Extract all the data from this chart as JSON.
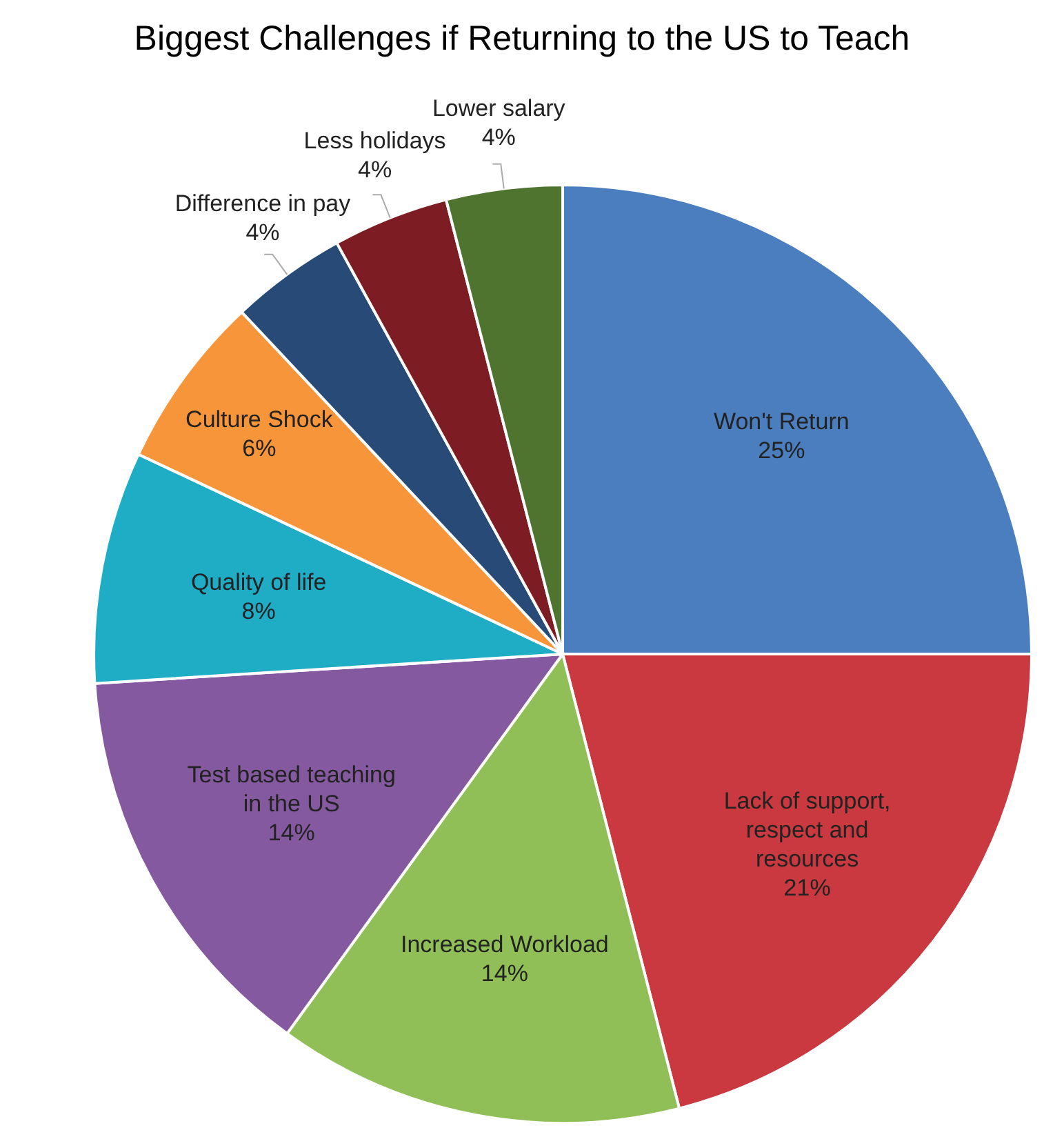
{
  "chart_data": {
    "type": "pie",
    "title": "Biggest Challenges if Returning to the US to Teach",
    "categories": [
      "Won't Return",
      "Lack of support, respect and resources",
      "Increased Workload",
      "Test based teaching in the US",
      "Quality of life",
      "Culture Shock",
      "Difference in pay",
      "Less holidays",
      "Lower salary"
    ],
    "values": [
      25,
      21,
      14,
      14,
      8,
      6,
      4,
      4,
      4
    ],
    "colors": [
      "#4a7ebf",
      "#c9393f",
      "#8fbf56",
      "#8459a0",
      "#1fadc6",
      "#f7953a",
      "#284a77",
      "#7e1c23",
      "#4f7430"
    ],
    "value_labels": [
      "25%",
      "21%",
      "14%",
      "14%",
      "8%",
      "6%",
      "4%",
      "4%",
      "4%"
    ]
  }
}
